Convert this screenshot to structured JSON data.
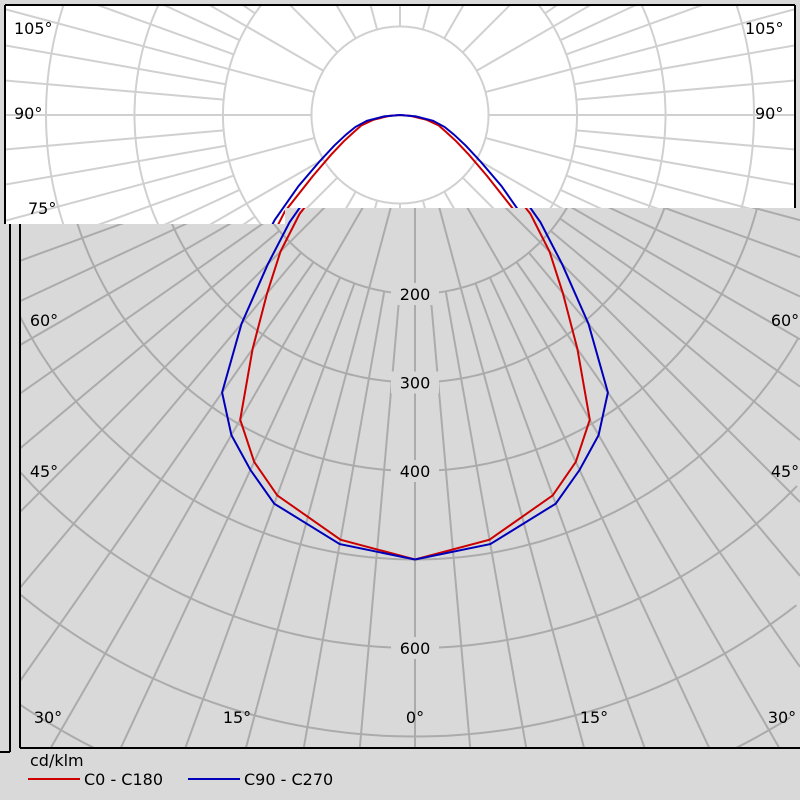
{
  "chart_data": {
    "type": "polar-line",
    "unit_label": "cd/klm",
    "radial_ticks": [
      100,
      200,
      300,
      400,
      500,
      600,
      700,
      800
    ],
    "radial_tick_labels_shown": [
      "200",
      "300",
      "400",
      "600"
    ],
    "angle_tick_labels": [
      "0°",
      "15°",
      "30°",
      "45°",
      "60°",
      "75°",
      "90°",
      "105°"
    ],
    "angle_step_deg": 15,
    "grid": true,
    "legend_placement": "bottom-left",
    "gamma": [
      0,
      10,
      20,
      25,
      30,
      35,
      40,
      45,
      50,
      55,
      60,
      65,
      70,
      75,
      80,
      85,
      90
    ],
    "series": [
      {
        "name": "C0 - C180",
        "color": "#cc0000",
        "values": [
          500,
          485,
          455,
          430,
          395,
          320,
          260,
          215,
          170,
          120,
          90,
          70,
          55,
          45,
          30,
          12,
          0
        ]
      },
      {
        "name": "C90 - C270",
        "color": "#0000bb",
        "values": [
          500,
          490,
          465,
          440,
          415,
          380,
          305,
          235,
          185,
          140,
          105,
          82,
          65,
          52,
          38,
          18,
          0
        ]
      }
    ]
  }
}
